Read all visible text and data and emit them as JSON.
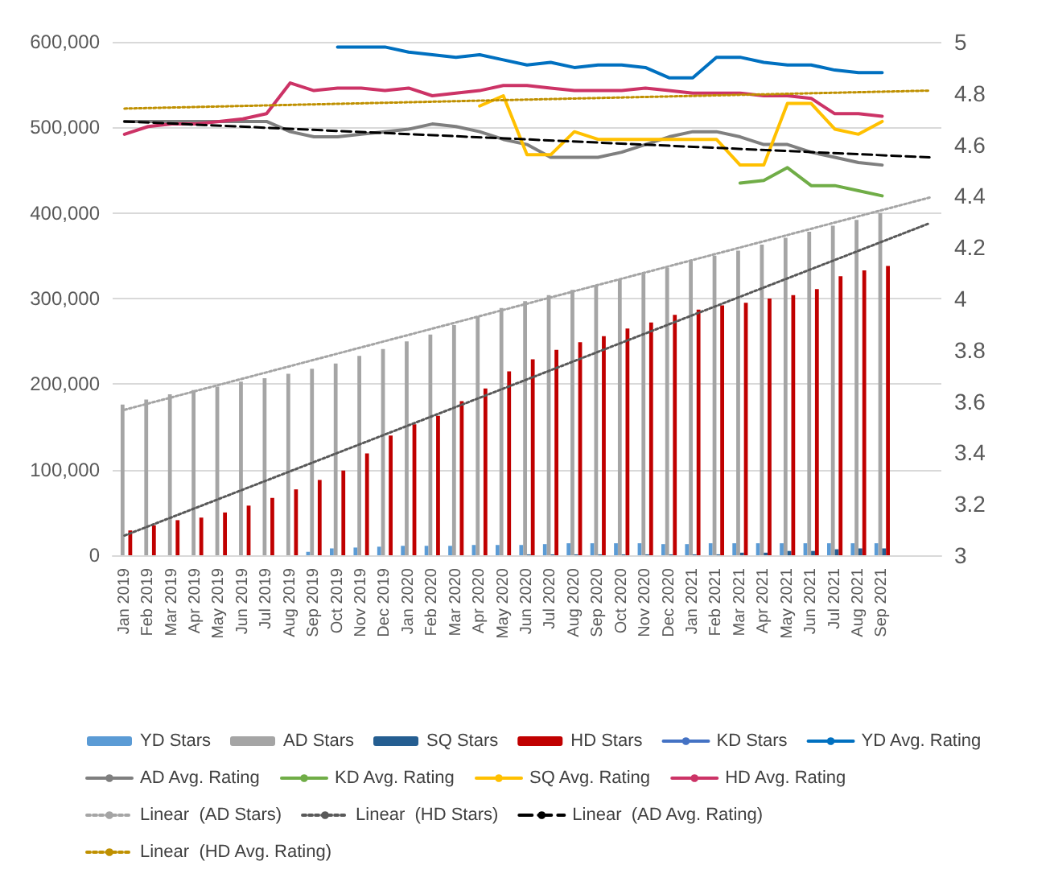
{
  "chart_data": {
    "type": "bar",
    "categories": [
      "Jan 2019",
      "Feb 2019",
      "Mar 2019",
      "Apr 2019",
      "May 2019",
      "Jun 2019",
      "Jul 2019",
      "Aug 2019",
      "Sep 2019",
      "Oct 2019",
      "Nov 2019",
      "Dec 2019",
      "Jan 2020",
      "Feb 2020",
      "Mar 2020",
      "Apr 2020",
      "May 2020",
      "Jun 2020",
      "Jul 2020",
      "Aug 2020",
      "Sep 2020",
      "Oct 2020",
      "Nov 2020",
      "Dec 2020",
      "Jan 2021",
      "Feb 2021",
      "Mar 2021",
      "Apr 2021",
      "May 2021",
      "Jun 2021",
      "Jul 2021",
      "Aug 2021",
      "Sep 2021",
      null,
      null
    ],
    "ylim": [
      0,
      600000
    ],
    "yticks": [
      {
        "value": 0,
        "label": "0"
      },
      {
        "value": 100000,
        "label": "100,000"
      },
      {
        "value": 200000,
        "label": "200,000"
      },
      {
        "value": 300000,
        "label": "300,000"
      },
      {
        "value": 400000,
        "label": "400,000"
      },
      {
        "value": 500000,
        "label": "500,000"
      },
      {
        "value": 600000,
        "label": "600,000"
      }
    ],
    "y2lim": [
      3,
      5
    ],
    "y2ticks": [
      3,
      3.2,
      3.4,
      3.6,
      3.8,
      4,
      4.2,
      4.4,
      4.6,
      4.8,
      5
    ],
    "grid": "y",
    "legend": "bottom",
    "marker": "none",
    "series": [
      {
        "name": "YD Stars",
        "color": "#5b9bd5",
        "values": [
          null,
          null,
          null,
          null,
          null,
          null,
          null,
          null,
          4000,
          8000,
          9000,
          10000,
          11000,
          11000,
          11000,
          12000,
          12000,
          12000,
          13000,
          14000,
          14000,
          14000,
          14000,
          13000,
          13000,
          14000,
          14000,
          14000,
          14000,
          14000,
          14000,
          14000,
          14000,
          null,
          null
        ]
      },
      {
        "name": "AD Stars",
        "color": "#a5a5a5",
        "values": [
          176000,
          182000,
          188000,
          193000,
          197000,
          203000,
          207000,
          212000,
          218000,
          224000,
          233000,
          241000,
          250000,
          258000,
          269000,
          279000,
          289000,
          297000,
          304000,
          310000,
          316000,
          322000,
          329000,
          336000,
          344000,
          350000,
          356000,
          363000,
          371000,
          378000,
          385000,
          392000,
          400000,
          null,
          null
        ]
      },
      {
        "name": "SQ Stars",
        "color": "#255e91",
        "values": [
          null,
          null,
          null,
          null,
          null,
          null,
          null,
          null,
          null,
          null,
          null,
          null,
          null,
          null,
          null,
          null,
          null,
          1000,
          1000,
          1000,
          1000,
          1000,
          1000,
          1000,
          1000,
          1000,
          3000,
          3000,
          5000,
          5000,
          7000,
          8000,
          8000,
          null,
          null
        ]
      },
      {
        "name": "HD Stars",
        "color": "#c00000",
        "values": [
          29000,
          35000,
          41000,
          44000,
          50000,
          58000,
          67000,
          77000,
          88000,
          99000,
          119000,
          140000,
          153000,
          163000,
          180000,
          195000,
          215000,
          229000,
          240000,
          249000,
          256000,
          265000,
          272000,
          281000,
          287000,
          292000,
          295000,
          300000,
          304000,
          311000,
          326000,
          333000,
          338000,
          null,
          null
        ]
      },
      {
        "name": "KD Stars",
        "type": "line",
        "color": "#4472c4",
        "values": [
          null,
          null,
          null,
          null,
          null,
          null,
          null,
          null,
          null,
          null,
          null,
          null,
          null,
          null,
          null,
          null,
          null,
          null,
          null,
          null,
          null,
          null,
          null,
          null,
          null,
          null,
          null,
          null,
          null,
          null,
          null,
          null,
          null,
          null,
          null
        ]
      },
      {
        "name": "YD Avg. Rating",
        "type": "line",
        "axis": "y2",
        "color": "#0070c0",
        "values": [
          null,
          null,
          null,
          null,
          null,
          null,
          null,
          null,
          null,
          4.98,
          4.98,
          4.98,
          4.96,
          4.95,
          4.94,
          4.95,
          4.93,
          4.91,
          4.92,
          4.9,
          4.91,
          4.91,
          4.9,
          4.86,
          4.86,
          4.94,
          4.94,
          4.92,
          4.91,
          4.91,
          4.89,
          4.88,
          4.88,
          null,
          null
        ]
      },
      {
        "name": "AD Avg. Rating",
        "type": "line",
        "axis": "y2",
        "color": "#7f7f7f",
        "values": [
          4.69,
          4.69,
          4.69,
          4.69,
          4.69,
          4.69,
          4.69,
          4.65,
          4.63,
          4.63,
          4.64,
          4.65,
          4.66,
          4.68,
          4.67,
          4.65,
          4.62,
          4.6,
          4.55,
          4.55,
          4.55,
          4.57,
          4.6,
          4.63,
          4.65,
          4.65,
          4.63,
          4.6,
          4.6,
          4.57,
          4.55,
          4.53,
          4.52,
          null,
          null
        ]
      },
      {
        "name": "KD Avg. Rating",
        "type": "line",
        "axis": "y2",
        "color": "#70ad47",
        "values": [
          null,
          null,
          null,
          null,
          null,
          null,
          null,
          null,
          null,
          null,
          null,
          null,
          null,
          null,
          null,
          null,
          null,
          null,
          null,
          null,
          null,
          null,
          null,
          null,
          null,
          null,
          4.45,
          4.46,
          4.51,
          4.44,
          4.44,
          4.42,
          4.4,
          null,
          null
        ]
      },
      {
        "name": "SQ Avg. Rating",
        "type": "line",
        "axis": "y2",
        "color": "#ffc000",
        "values": [
          null,
          null,
          null,
          null,
          null,
          null,
          null,
          null,
          null,
          null,
          null,
          null,
          null,
          null,
          null,
          4.75,
          4.79,
          4.56,
          4.56,
          4.65,
          4.62,
          4.62,
          4.62,
          4.62,
          4.62,
          4.62,
          4.52,
          4.52,
          4.76,
          4.76,
          4.66,
          4.64,
          4.69,
          null,
          null
        ]
      },
      {
        "name": "HD Avg. Rating",
        "type": "line",
        "axis": "y2",
        "color": "#cc3366",
        "values": [
          4.64,
          4.67,
          4.68,
          4.68,
          4.69,
          4.7,
          4.72,
          4.84,
          4.81,
          4.82,
          4.82,
          4.81,
          4.82,
          4.79,
          4.8,
          4.81,
          4.83,
          4.83,
          4.82,
          4.81,
          4.81,
          4.81,
          4.82,
          4.81,
          4.8,
          4.8,
          4.8,
          4.79,
          4.79,
          4.78,
          4.72,
          4.72,
          4.71,
          null,
          null
        ]
      },
      {
        "name": "Linear  (AD Stars)",
        "type": "line",
        "color": "#a5a5a5",
        "line_style": "dotted",
        "values": [
          170000,
          null,
          null,
          null,
          null,
          null,
          null,
          null,
          null,
          null,
          null,
          null,
          null,
          null,
          null,
          null,
          null,
          null,
          null,
          null,
          null,
          null,
          null,
          null,
          null,
          null,
          null,
          null,
          null,
          null,
          null,
          null,
          null,
          null,
          418000
        ]
      },
      {
        "name": "Linear  (HD Stars)",
        "type": "line",
        "color": "#595959",
        "line_style": "dotted",
        "values": [
          23000,
          null,
          null,
          null,
          null,
          null,
          null,
          null,
          null,
          null,
          null,
          null,
          null,
          null,
          null,
          null,
          null,
          null,
          null,
          null,
          null,
          null,
          null,
          null,
          null,
          null,
          null,
          null,
          null,
          null,
          null,
          null,
          null,
          null,
          388000
        ]
      },
      {
        "name": "Linear  (AD Avg. Rating)",
        "type": "line",
        "axis": "y2",
        "color": "#000000",
        "line_style": "dashed",
        "values": [
          4.69,
          null,
          null,
          null,
          null,
          null,
          null,
          null,
          null,
          null,
          null,
          null,
          null,
          null,
          null,
          null,
          null,
          null,
          null,
          null,
          null,
          null,
          null,
          null,
          null,
          null,
          null,
          null,
          null,
          null,
          null,
          null,
          null,
          null,
          4.55
        ]
      },
      {
        "name": "Linear  (HD Avg. Rating)",
        "type": "line",
        "axis": "y2",
        "color": "#bf9000",
        "line_style": "dotted",
        "values": [
          4.74,
          null,
          null,
          null,
          null,
          null,
          null,
          null,
          null,
          null,
          null,
          null,
          null,
          null,
          null,
          null,
          null,
          null,
          null,
          null,
          null,
          null,
          null,
          null,
          null,
          null,
          null,
          null,
          null,
          null,
          null,
          null,
          null,
          null,
          4.81
        ]
      }
    ]
  }
}
